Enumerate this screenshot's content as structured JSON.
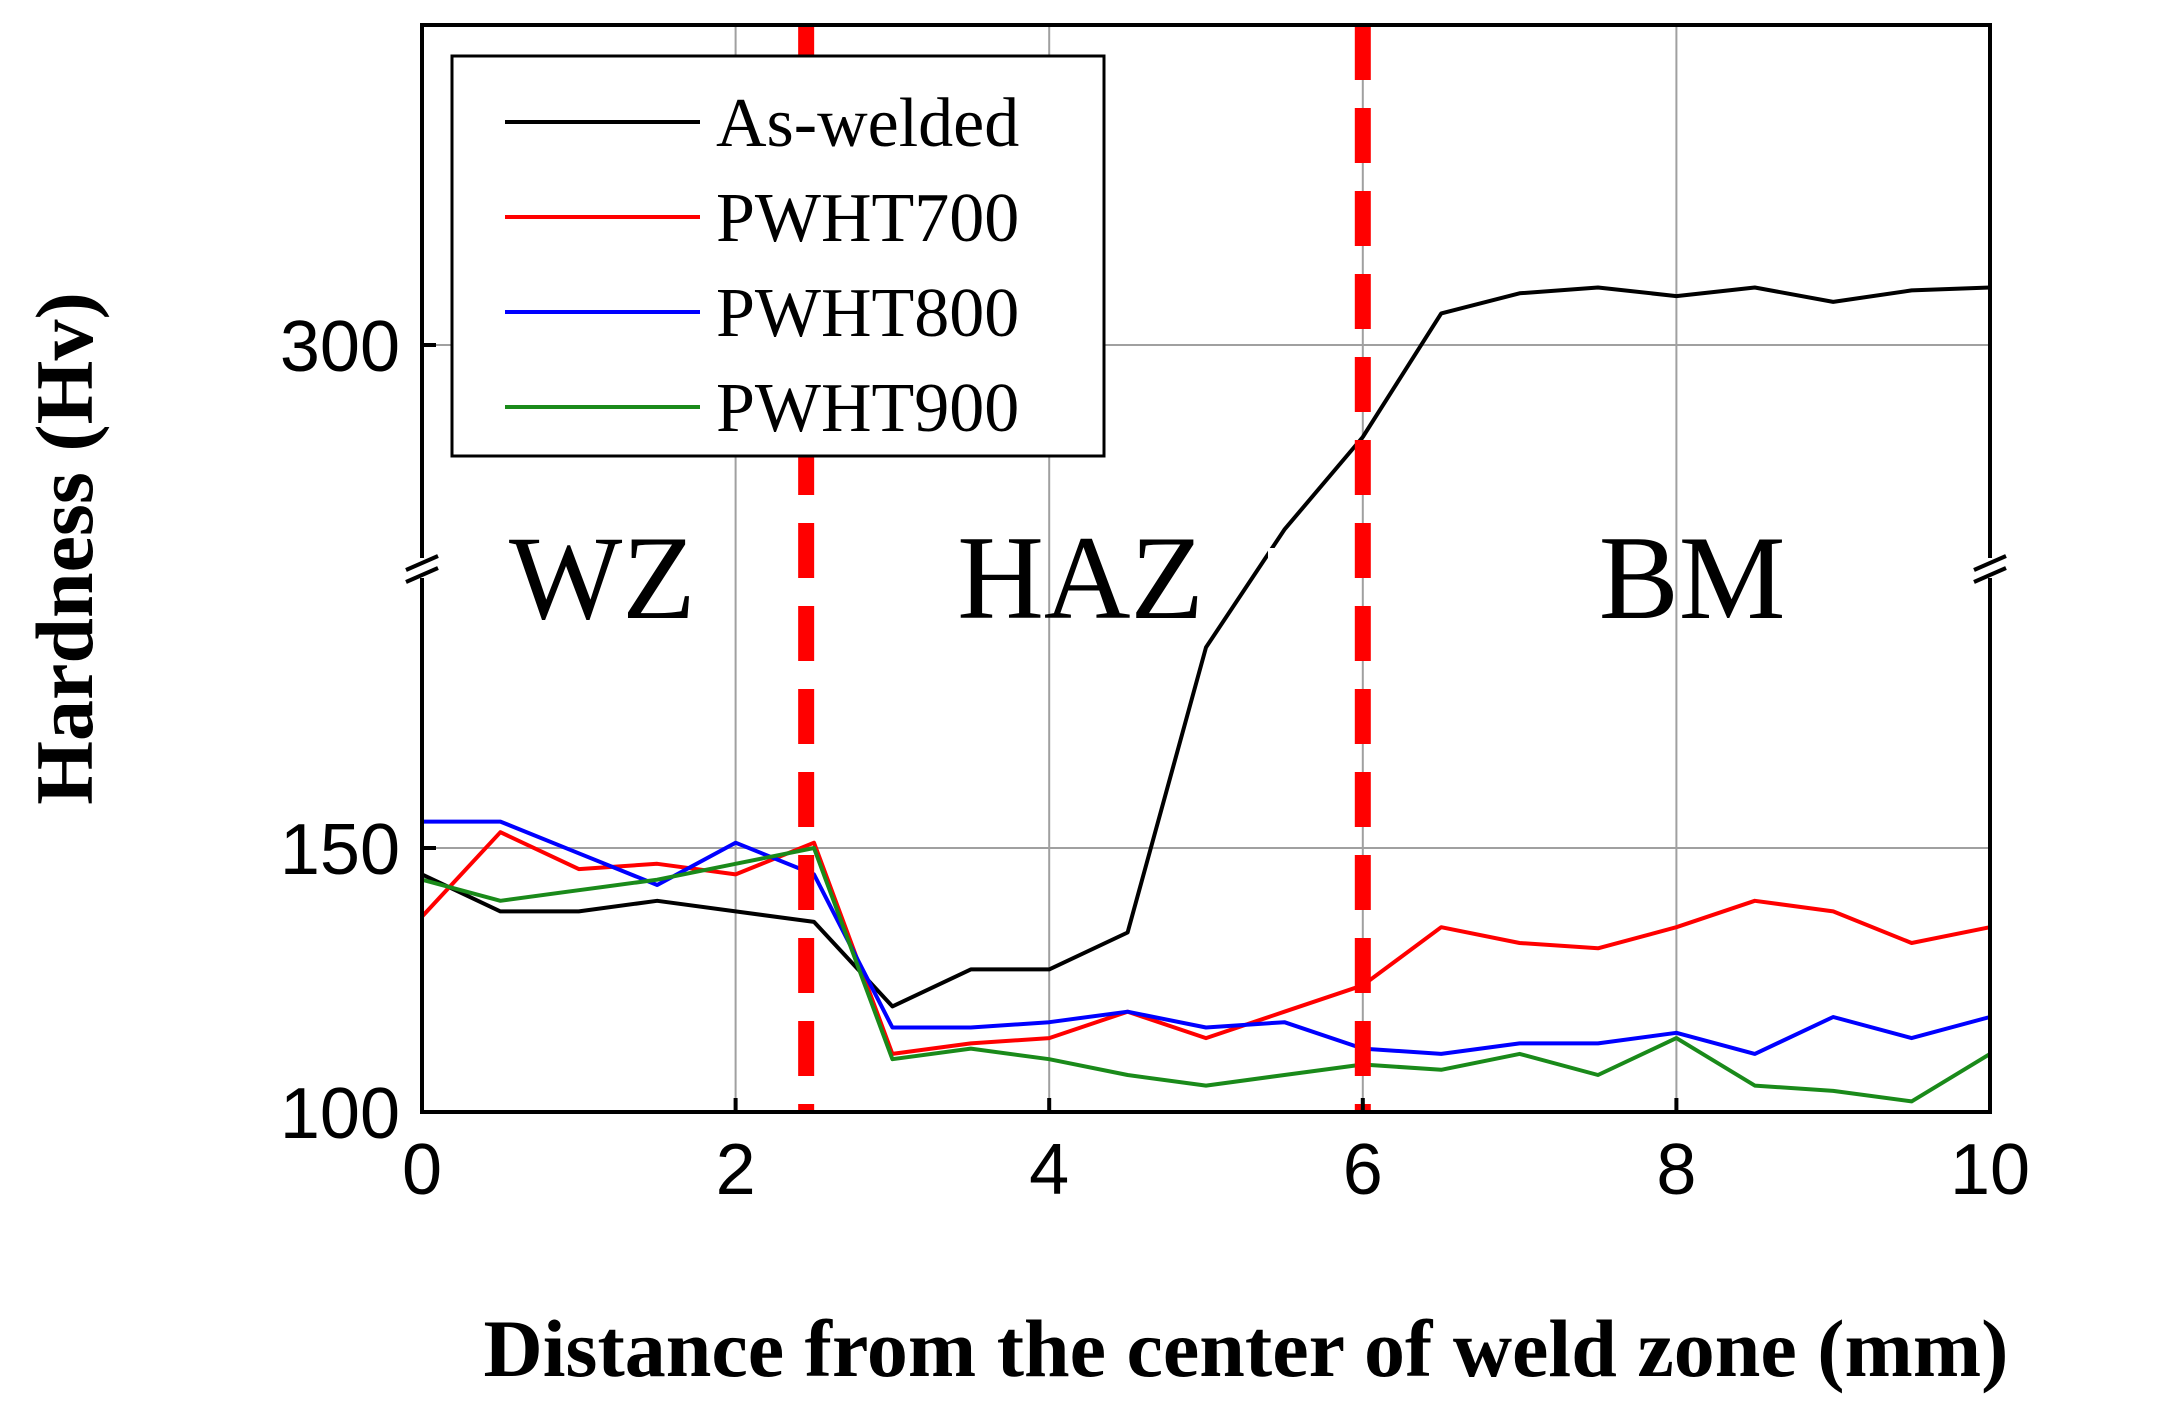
{
  "chart_data": {
    "type": "line",
    "title": "",
    "xlabel": "Distance from the center of weld zone (mm)",
    "ylabel": "Hardness (Hv)",
    "xlim": [
      0,
      10
    ],
    "x_ticks": [
      "0",
      "2",
      "4",
      "6",
      "8",
      "10"
    ],
    "y_ticks": [
      "100",
      "150",
      "300"
    ],
    "y_axis_break": {
      "lower_range": [
        100,
        205
      ],
      "upper_range": [
        265,
        345
      ]
    },
    "grid": true,
    "legend_position": "top-left",
    "zone_boundaries": [
      2.45,
      6.0
    ],
    "zones": [
      "WZ",
      "HAZ",
      "BM"
    ],
    "x": [
      0,
      0.5,
      1,
      1.5,
      2,
      2.5,
      3,
      3.5,
      4,
      4.5,
      5,
      5.5,
      6,
      6.5,
      7,
      7.5,
      8,
      8.5,
      9,
      9.5,
      10
    ],
    "series": [
      {
        "name": "As-welded",
        "color": "#000000",
        "values": [
          145,
          138,
          138,
          140,
          138,
          136,
          120,
          127,
          127,
          134,
          188,
          220,
          268,
          311,
          318,
          320,
          317,
          320,
          315,
          319,
          320
        ]
      },
      {
        "name": "PWHT700",
        "color": "#ff0000",
        "values": [
          137,
          153,
          146,
          147,
          145,
          151,
          111,
          113,
          114,
          119,
          114,
          119,
          124,
          135,
          132,
          131,
          135,
          140,
          138,
          132,
          135
        ]
      },
      {
        "name": "PWHT800",
        "color": "#0000ff",
        "values": [
          155,
          155,
          149,
          143,
          151,
          145,
          116,
          116,
          117,
          119,
          116,
          117,
          112,
          111,
          113,
          113,
          115,
          111,
          118,
          114,
          118
        ]
      },
      {
        "name": "PWHT900",
        "color": "#1a8a1a",
        "values": [
          144,
          140,
          142,
          144,
          147,
          150,
          110,
          112,
          110,
          107,
          105,
          107,
          109,
          108,
          111,
          107,
          114,
          105,
          104,
          102,
          111
        ]
      }
    ]
  }
}
